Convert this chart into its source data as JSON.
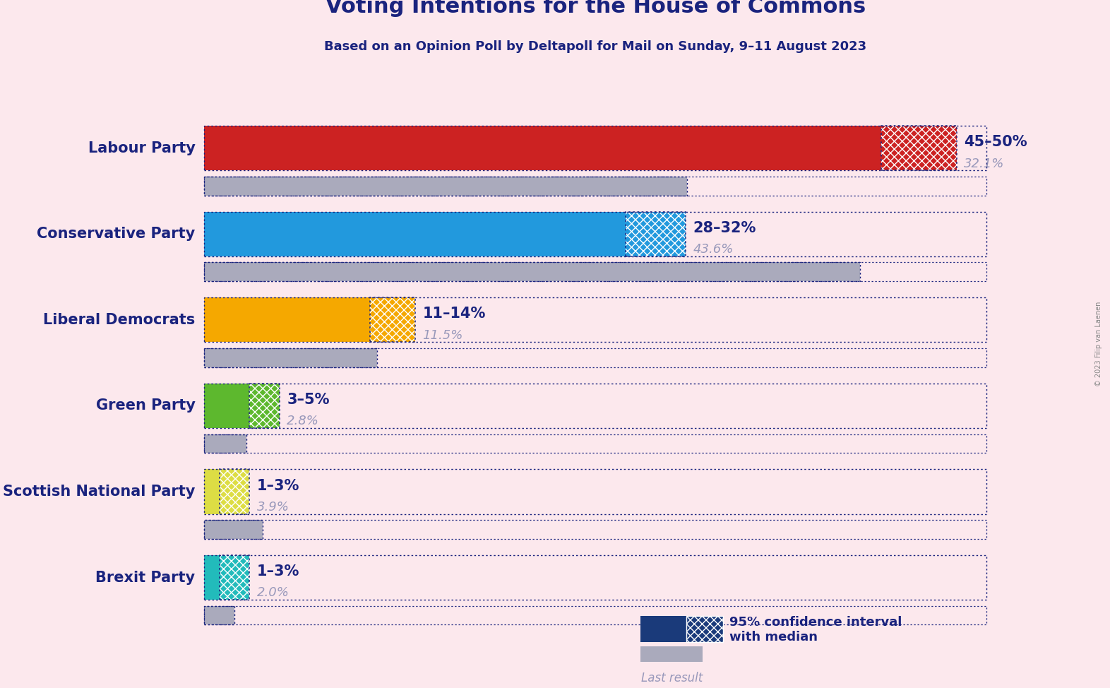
{
  "title": "Voting Intentions for the House of Commons",
  "subtitle": "Based on an Opinion Poll by Deltapoll for Mail on Sunday, 9–11 August 2023",
  "copyright": "© 2023 Filip van Laenen",
  "background_color": "#fce8ed",
  "parties": [
    {
      "name": "Labour Party",
      "ci_low": 45,
      "ci_high": 50,
      "last_result": 32.1,
      "color": "#cc2222",
      "label": "45–50%",
      "last_label": "32.1%"
    },
    {
      "name": "Conservative Party",
      "ci_low": 28,
      "ci_high": 32,
      "last_result": 43.6,
      "color": "#2299dd",
      "label": "28–32%",
      "last_label": "43.6%"
    },
    {
      "name": "Liberal Democrats",
      "ci_low": 11,
      "ci_high": 14,
      "last_result": 11.5,
      "color": "#f5a800",
      "label": "11–14%",
      "last_label": "11.5%"
    },
    {
      "name": "Green Party",
      "ci_low": 3,
      "ci_high": 5,
      "last_result": 2.8,
      "color": "#5db82e",
      "label": "3–5%",
      "last_label": "2.8%"
    },
    {
      "name": "Scottish National Party",
      "ci_low": 1,
      "ci_high": 3,
      "last_result": 3.9,
      "color": "#dddd44",
      "label": "1–3%",
      "last_label": "3.9%"
    },
    {
      "name": "Brexit Party",
      "ci_low": 1,
      "ci_high": 3,
      "last_result": 2.0,
      "color": "#22bbbb",
      "label": "1–3%",
      "last_label": "2.0%"
    }
  ],
  "xmax": 52,
  "title_color": "#1a237e",
  "subtitle_color": "#1a237e",
  "party_label_color": "#1a237e",
  "ci_label_color": "#1a237e",
  "last_result_color": "#9999bb",
  "dotted_color": "#1a237e",
  "legend_ci_color": "#1a3a7a",
  "legend_last_color": "#aaaabc"
}
